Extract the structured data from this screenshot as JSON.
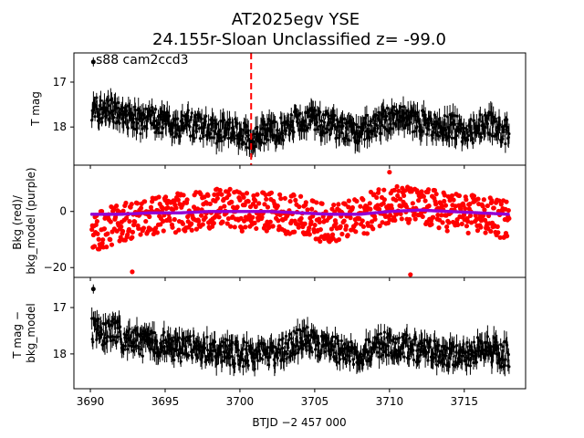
{
  "chart_data": [
    {
      "type": "scatter",
      "panel": "top",
      "title": "AT2025egv  YSE",
      "subtitle": "24.155r-Sloan Unclassified z= -99.0",
      "annotation": "s88 cam2ccd3",
      "ylabel": "T mag",
      "y_inverted": true,
      "ylim": [
        18.85,
        16.35
      ],
      "yticks": [
        "17",
        "18"
      ],
      "xlim": [
        3688.9,
        3719.1
      ],
      "vline_x": 3700.75,
      "vline_color": "#ff0000",
      "marker_color": "#000000",
      "series": [
        {
          "x": [
            3690.1,
            3690.5,
            3691.0,
            3691.5,
            3692.0,
            3692.5,
            3693.0,
            3693.5,
            3694.0,
            3694.5,
            3695.0,
            3695.5,
            3696.0,
            3696.5,
            3697.0,
            3697.5,
            3698.0,
            3698.5,
            3699.0,
            3699.5,
            3700.0,
            3700.5,
            3701.0,
            3701.5,
            3702.0,
            3702.5,
            3703.0,
            3703.5,
            3704.0,
            3704.5,
            3705.0,
            3705.5,
            3706.0,
            3706.5,
            3707.0,
            3707.5,
            3708.0,
            3708.5,
            3709.0,
            3709.5,
            3710.0,
            3710.5,
            3711.0,
            3711.5,
            3712.0,
            3712.5,
            3713.0,
            3713.5,
            3714.0,
            3714.5,
            3715.0,
            3715.5,
            3716.0,
            3716.5,
            3717.0,
            3717.5,
            3718.0
          ],
          "y": [
            17.6,
            17.6,
            17.7,
            17.6,
            17.7,
            17.8,
            17.8,
            17.9,
            17.8,
            17.9,
            17.9,
            18.0,
            18.0,
            17.9,
            18.0,
            18.0,
            18.0,
            18.1,
            18.0,
            18.1,
            18.1,
            18.2,
            18.2,
            18.1,
            18.1,
            18.1,
            18.0,
            17.9,
            17.8,
            17.8,
            17.9,
            17.9,
            17.9,
            18.0,
            18.1,
            18.1,
            18.1,
            18.0,
            18.0,
            17.9,
            17.8,
            17.8,
            17.8,
            17.9,
            17.9,
            17.9,
            18.0,
            18.0,
            18.0,
            18.0,
            18.1,
            18.1,
            18.0,
            17.9,
            18.0,
            18.1,
            18.1
          ]
        }
      ],
      "outlier": {
        "x": 3690.2,
        "y": 16.55
      }
    },
    {
      "type": "scatter",
      "panel": "middle",
      "ylabel": "Bkg (red)/\nbkg_model (purple)",
      "ylim": [
        -23.5,
        16.5
      ],
      "yticks": [
        "0",
        "−20"
      ],
      "xlim": [
        3688.9,
        3719.1
      ],
      "series": [
        {
          "name": "Bkg",
          "color": "#ff0000",
          "x": [
            3690.1,
            3690.5,
            3691.0,
            3691.5,
            3692.0,
            3692.5,
            3693.0,
            3693.5,
            3694.0,
            3694.5,
            3695.0,
            3695.5,
            3696.0,
            3696.5,
            3697.0,
            3697.5,
            3698.0,
            3698.5,
            3699.0,
            3699.5,
            3700.0,
            3700.5,
            3701.0,
            3701.5,
            3702.0,
            3702.5,
            3703.0,
            3703.5,
            3704.0,
            3704.5,
            3705.0,
            3705.5,
            3706.0,
            3706.5,
            3707.0,
            3707.5,
            3708.0,
            3708.5,
            3709.0,
            3709.5,
            3710.0,
            3710.5,
            3711.0,
            3711.5,
            3712.0,
            3712.5,
            3713.0,
            3713.5,
            3714.0,
            3714.5,
            3715.0,
            3715.5,
            3716.0,
            3716.5,
            3717.0,
            3717.5,
            3718.0
          ],
          "y": [
            -8,
            -7,
            -6,
            -5,
            -4,
            -3,
            -3,
            -2,
            -2,
            -1,
            -1,
            -1,
            0,
            0,
            0,
            0,
            1,
            1,
            1,
            1,
            0,
            0,
            0,
            0,
            0,
            0,
            -1,
            -1,
            -1,
            -2,
            -3,
            -4,
            -4,
            -4,
            -3,
            -3,
            -2,
            -1,
            1,
            2,
            3,
            3,
            2,
            2,
            1,
            1,
            1,
            0,
            0,
            0,
            -1,
            -1,
            -1,
            -2,
            -2,
            -3,
            -3
          ]
        },
        {
          "name": "bkg_model",
          "color": "#9400d3",
          "x": [
            3690.1,
            3692.0,
            3694.0,
            3696.0,
            3698.0,
            3700.0,
            3702.0,
            3704.0,
            3706.0,
            3708.0,
            3710.0,
            3712.0,
            3714.0,
            3716.0,
            3718.0
          ],
          "y": [
            -1,
            -1,
            -0.5,
            -0.5,
            0,
            0,
            0,
            -0.5,
            -1,
            -1,
            0,
            0.5,
            0,
            -0.5,
            -1
          ]
        }
      ],
      "outliers": [
        {
          "x": 3692.8,
          "y": -21.5
        },
        {
          "x": 3711.4,
          "y": -22.5
        },
        {
          "x": 3710.0,
          "y": 14.0
        }
      ]
    },
    {
      "type": "scatter",
      "panel": "bottom",
      "ylabel": "T mag −\nbkg_model",
      "xlabel": "BTJD −2 457 000",
      "y_inverted": true,
      "ylim": [
        18.75,
        16.35
      ],
      "yticks": [
        "17",
        "18"
      ],
      "xlim": [
        3688.9,
        3719.1
      ],
      "xticks": [
        "3690",
        "3695",
        "3700",
        "3705",
        "3710",
        "3715"
      ],
      "xtick_values": [
        3690,
        3695,
        3700,
        3705,
        3710,
        3715
      ],
      "marker_color": "#000000",
      "series": [
        {
          "x": [
            3690.1,
            3690.5,
            3691.0,
            3691.5,
            3692.0,
            3692.5,
            3693.0,
            3693.5,
            3694.0,
            3694.5,
            3695.0,
            3695.5,
            3696.0,
            3696.5,
            3697.0,
            3697.5,
            3698.0,
            3698.5,
            3699.0,
            3699.5,
            3700.0,
            3700.5,
            3701.0,
            3701.5,
            3702.0,
            3702.5,
            3703.0,
            3703.5,
            3704.0,
            3704.5,
            3705.0,
            3705.5,
            3706.0,
            3706.5,
            3707.0,
            3707.5,
            3708.0,
            3708.5,
            3709.0,
            3709.5,
            3710.0,
            3710.5,
            3711.0,
            3711.5,
            3712.0,
            3712.5,
            3713.0,
            3713.5,
            3714.0,
            3714.5,
            3715.0,
            3715.5,
            3716.0,
            3716.5,
            3717.0,
            3717.5,
            3718.0
          ],
          "y": [
            17.5,
            17.5,
            17.6,
            17.5,
            17.6,
            17.7,
            17.7,
            17.8,
            17.7,
            17.8,
            17.8,
            17.9,
            17.9,
            17.8,
            17.9,
            17.9,
            17.9,
            18.0,
            17.9,
            18.0,
            18.0,
            18.0,
            18.1,
            18.0,
            18.0,
            18.0,
            17.9,
            17.8,
            17.7,
            17.7,
            17.8,
            17.8,
            17.9,
            17.9,
            18.0,
            18.0,
            18.0,
            17.9,
            17.9,
            17.8,
            17.8,
            17.8,
            17.8,
            17.9,
            17.9,
            17.9,
            18.0,
            18.0,
            18.0,
            18.0,
            18.0,
            18.0,
            17.9,
            17.9,
            17.9,
            18.0,
            18.0
          ]
        }
      ],
      "outlier": {
        "x": 3690.2,
        "y": 16.6
      }
    }
  ]
}
